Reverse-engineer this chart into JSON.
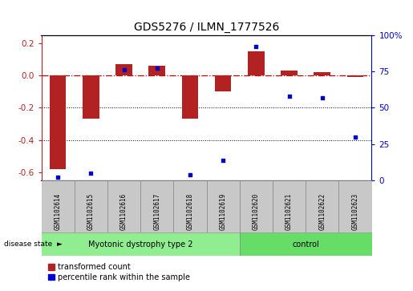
{
  "title": "GDS5276 / ILMN_1777526",
  "samples": [
    "GSM1102614",
    "GSM1102615",
    "GSM1102616",
    "GSM1102617",
    "GSM1102618",
    "GSM1102619",
    "GSM1102620",
    "GSM1102621",
    "GSM1102622",
    "GSM1102623"
  ],
  "red_values": [
    -0.58,
    -0.27,
    0.07,
    0.06,
    -0.27,
    -0.1,
    0.15,
    0.03,
    0.02,
    -0.01
  ],
  "blue_values": [
    2.0,
    5.0,
    76.0,
    77.0,
    4.0,
    14.0,
    92.0,
    58.0,
    57.0,
    30.0
  ],
  "ylim_left": [
    -0.65,
    0.25
  ],
  "ylim_right": [
    0,
    100
  ],
  "yticks_left": [
    -0.6,
    -0.4,
    -0.2,
    0.0,
    0.2
  ],
  "yticks_right": [
    0,
    25,
    50,
    75,
    100
  ],
  "disease_groups": [
    {
      "label": "Myotonic dystrophy type 2",
      "start": 0,
      "end": 6,
      "color": "#90EE90"
    },
    {
      "label": "control",
      "start": 6,
      "end": 10,
      "color": "#66DD66"
    }
  ],
  "bar_color": "#B22222",
  "dot_color": "#0000CC",
  "zero_line_color": "#CC0000",
  "grid_color": "#000000",
  "label_box_color": "#C8C8C8",
  "legend_red_label": "transformed count",
  "legend_blue_label": "percentile rank within the sample",
  "disease_state_label": "disease state",
  "n_disease": 6,
  "n_control": 4
}
